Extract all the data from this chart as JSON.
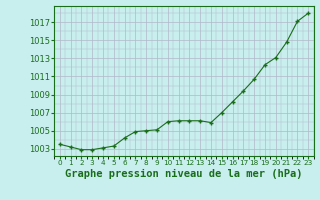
{
  "x": [
    0,
    1,
    2,
    3,
    4,
    5,
    6,
    7,
    8,
    9,
    10,
    11,
    12,
    13,
    14,
    15,
    16,
    17,
    18,
    19,
    20,
    21,
    22,
    23
  ],
  "y": [
    1003.5,
    1003.2,
    1002.9,
    1002.9,
    1003.1,
    1003.3,
    1004.2,
    1004.9,
    1005.0,
    1005.1,
    1006.0,
    1006.1,
    1006.1,
    1006.1,
    1005.9,
    1007.0,
    1008.2,
    1009.4,
    1010.7,
    1012.3,
    1013.1,
    1014.8,
    1017.1,
    1018.0
  ],
  "line_color": "#1a6e1a",
  "marker": "P",
  "marker_size": 3,
  "bg_color": "#c8eeee",
  "grid_color": "#b0b8c8",
  "xlabel": "Graphe pression niveau de la mer (hPa)",
  "yticks": [
    1003,
    1005,
    1007,
    1009,
    1011,
    1013,
    1015,
    1017
  ],
  "ylim": [
    1002.2,
    1018.8
  ],
  "xlim": [
    -0.5,
    23.5
  ],
  "tick_color": "#1a6e1a",
  "label_color": "#1a6e1a",
  "xlabel_fontsize": 7.5,
  "tick_fontsize": 6.0,
  "xtick_fontsize": 5.2
}
